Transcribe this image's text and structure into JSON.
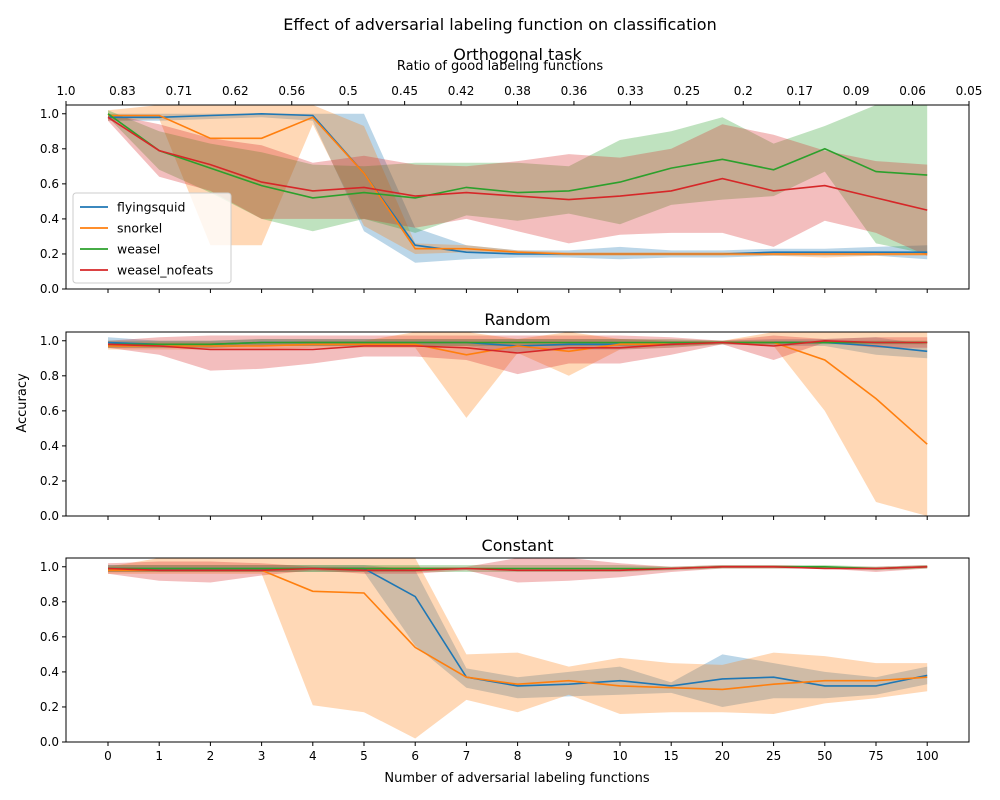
{
  "figure": {
    "suptitle": "Effect of adversarial labeling function on classification",
    "ylabel": "Accuracy",
    "xlabel": "Number of adversarial labeling functions",
    "top_axis_label": "Ratio of good labeling functions",
    "top_tick_labels": [
      "1.0",
      "0.83",
      "0.71",
      "0.62",
      "0.56",
      "0.5",
      "0.45",
      "0.42",
      "0.38",
      "0.36",
      "0.33",
      "0.25",
      "0.2",
      "0.17",
      "0.09",
      "0.06",
      "0.05"
    ]
  },
  "chart_data": [
    {
      "type": "line",
      "title": "Orthogonal task",
      "x": [
        "0",
        "1",
        "2",
        "3",
        "4",
        "5",
        "6",
        "7",
        "8",
        "9",
        "10",
        "15",
        "20",
        "25",
        "50",
        "75",
        "100"
      ],
      "ylim": [
        0,
        1.05
      ],
      "yticks": [
        "0.0",
        "0.2",
        "0.4",
        "0.6",
        "0.8",
        "1.0"
      ],
      "grid": false,
      "legend": "center-left",
      "series": [
        {
          "name": "flyingsquid",
          "color": "#1f77b4",
          "values": [
            0.98,
            0.98,
            0.99,
            1.0,
            0.99,
            0.66,
            0.25,
            0.21,
            0.2,
            0.2,
            0.2,
            0.2,
            0.2,
            0.21,
            0.21,
            0.21,
            0.21
          ],
          "lower": [
            0.96,
            0.96,
            0.97,
            0.98,
            0.96,
            0.33,
            0.15,
            0.17,
            0.18,
            0.18,
            0.17,
            0.18,
            0.18,
            0.19,
            0.19,
            0.19,
            0.17
          ],
          "upper": [
            1.0,
            1.0,
            1.0,
            1.0,
            1.0,
            1.0,
            0.35,
            0.25,
            0.22,
            0.22,
            0.24,
            0.22,
            0.22,
            0.23,
            0.23,
            0.24,
            0.25
          ]
        },
        {
          "name": "snorkel",
          "color": "#ff7f0e",
          "values": [
            0.99,
            0.99,
            0.86,
            0.86,
            0.98,
            0.66,
            0.23,
            0.23,
            0.21,
            0.2,
            0.2,
            0.2,
            0.2,
            0.2,
            0.2,
            0.2,
            0.2
          ],
          "lower": [
            0.96,
            0.97,
            0.25,
            0.25,
            0.94,
            0.36,
            0.2,
            0.21,
            0.2,
            0.19,
            0.19,
            0.19,
            0.19,
            0.19,
            0.18,
            0.19,
            0.19
          ],
          "upper": [
            1.02,
            1.05,
            1.05,
            1.05,
            1.05,
            0.93,
            0.26,
            0.25,
            0.22,
            0.21,
            0.21,
            0.21,
            0.21,
            0.21,
            0.21,
            0.21,
            0.21
          ]
        },
        {
          "name": "weasel",
          "color": "#2ca02c",
          "values": [
            1.0,
            0.79,
            0.69,
            0.59,
            0.52,
            0.55,
            0.52,
            0.58,
            0.55,
            0.56,
            0.61,
            0.69,
            0.74,
            0.68,
            0.8,
            0.67,
            0.65
          ],
          "lower": [
            0.98,
            0.68,
            0.55,
            0.4,
            0.33,
            0.4,
            0.32,
            0.42,
            0.39,
            0.43,
            0.37,
            0.48,
            0.51,
            0.53,
            0.67,
            0.26,
            0.2
          ],
          "upper": [
            1.02,
            0.9,
            0.83,
            0.78,
            0.71,
            0.7,
            0.72,
            0.72,
            0.72,
            0.7,
            0.85,
            0.9,
            0.98,
            0.83,
            0.93,
            1.05,
            1.05
          ]
        },
        {
          "name": "weasel_nofeats",
          "color": "#d62728",
          "values": [
            0.98,
            0.79,
            0.71,
            0.61,
            0.56,
            0.58,
            0.53,
            0.55,
            0.53,
            0.51,
            0.53,
            0.56,
            0.63,
            0.56,
            0.59,
            0.52,
            0.45
          ],
          "lower": [
            0.96,
            0.64,
            0.56,
            0.4,
            0.4,
            0.4,
            0.35,
            0.4,
            0.33,
            0.26,
            0.31,
            0.32,
            0.32,
            0.24,
            0.39,
            0.32,
            0.19
          ],
          "upper": [
            1.0,
            0.94,
            0.86,
            0.82,
            0.72,
            0.76,
            0.71,
            0.7,
            0.73,
            0.77,
            0.75,
            0.8,
            0.94,
            0.88,
            0.79,
            0.73,
            0.71
          ]
        }
      ]
    },
    {
      "type": "line",
      "title": "Random",
      "x": [
        "0",
        "1",
        "2",
        "3",
        "4",
        "5",
        "6",
        "7",
        "8",
        "9",
        "10",
        "15",
        "20",
        "25",
        "50",
        "75",
        "100"
      ],
      "ylim": [
        0,
        1.05
      ],
      "yticks": [
        "0.0",
        "0.2",
        "0.4",
        "0.6",
        "0.8",
        "1.0"
      ],
      "grid": false,
      "series": [
        {
          "name": "flyingsquid",
          "color": "#1f77b4",
          "values": [
            0.99,
            0.98,
            0.98,
            0.99,
            0.99,
            0.99,
            0.99,
            0.99,
            0.97,
            0.98,
            0.98,
            0.98,
            0.99,
            0.99,
            0.99,
            0.97,
            0.94
          ],
          "lower": [
            0.96,
            0.96,
            0.96,
            0.97,
            0.97,
            0.97,
            0.97,
            0.97,
            0.93,
            0.95,
            0.95,
            0.96,
            0.98,
            0.97,
            0.97,
            0.92,
            0.9
          ],
          "upper": [
            1.02,
            1.0,
            1.0,
            1.01,
            1.01,
            1.01,
            1.01,
            1.01,
            1.01,
            1.01,
            1.01,
            1.0,
            1.0,
            1.01,
            1.01,
            1.02,
            0.98
          ]
        },
        {
          "name": "snorkel",
          "color": "#ff7f0e",
          "values": [
            0.97,
            0.97,
            0.97,
            0.97,
            0.98,
            0.98,
            0.98,
            0.92,
            0.97,
            0.94,
            0.98,
            0.98,
            0.99,
            0.99,
            0.89,
            0.67,
            0.41
          ],
          "lower": [
            0.95,
            0.95,
            0.95,
            0.95,
            0.96,
            0.96,
            0.96,
            0.56,
            0.93,
            0.8,
            0.95,
            0.96,
            0.98,
            0.97,
            0.6,
            0.08,
            0.0
          ],
          "upper": [
            0.99,
            0.99,
            0.99,
            0.99,
            1.0,
            1.0,
            1.05,
            1.05,
            1.01,
            1.05,
            1.01,
            1.0,
            1.0,
            1.05,
            1.05,
            1.05,
            1.05
          ]
        },
        {
          "name": "weasel",
          "color": "#2ca02c",
          "values": [
            0.98,
            0.98,
            0.98,
            0.99,
            0.99,
            0.99,
            0.99,
            0.99,
            0.99,
            0.99,
            0.99,
            0.99,
            0.99,
            0.99,
            0.99,
            0.99,
            0.99
          ],
          "lower": [
            0.96,
            0.96,
            0.96,
            0.97,
            0.97,
            0.97,
            0.97,
            0.97,
            0.97,
            0.97,
            0.97,
            0.97,
            0.98,
            0.98,
            0.98,
            0.98,
            0.98
          ],
          "upper": [
            1.0,
            1.0,
            1.0,
            1.01,
            1.01,
            1.01,
            1.01,
            1.01,
            1.01,
            1.01,
            1.01,
            1.01,
            1.0,
            1.0,
            1.0,
            1.0,
            1.0
          ]
        },
        {
          "name": "weasel_nofeats",
          "color": "#d62728",
          "values": [
            0.98,
            0.97,
            0.95,
            0.95,
            0.95,
            0.97,
            0.97,
            0.96,
            0.93,
            0.96,
            0.96,
            0.98,
            0.99,
            0.97,
            1.0,
            0.99,
            0.99
          ],
          "lower": [
            0.96,
            0.92,
            0.83,
            0.84,
            0.87,
            0.91,
            0.91,
            0.89,
            0.81,
            0.87,
            0.87,
            0.92,
            0.98,
            0.89,
            0.99,
            0.96,
            0.96
          ],
          "upper": [
            1.0,
            1.02,
            1.03,
            1.03,
            1.03,
            1.03,
            1.03,
            1.03,
            1.03,
            1.03,
            1.03,
            1.02,
            1.0,
            1.03,
            1.01,
            1.02,
            1.02
          ]
        }
      ]
    },
    {
      "type": "line",
      "title": "Constant",
      "x": [
        "0",
        "1",
        "2",
        "3",
        "4",
        "5",
        "6",
        "7",
        "8",
        "9",
        "10",
        "15",
        "20",
        "25",
        "50",
        "75",
        "100"
      ],
      "ylim": [
        0,
        1.05
      ],
      "yticks": [
        "0.0",
        "0.2",
        "0.4",
        "0.6",
        "0.8",
        "1.0"
      ],
      "grid": false,
      "series": [
        {
          "name": "flyingsquid",
          "color": "#1f77b4",
          "values": [
            0.99,
            0.99,
            0.99,
            0.99,
            0.99,
            0.99,
            0.83,
            0.37,
            0.32,
            0.33,
            0.35,
            0.32,
            0.36,
            0.37,
            0.32,
            0.32,
            0.38
          ],
          "lower": [
            0.97,
            0.97,
            0.97,
            0.97,
            0.97,
            0.97,
            0.55,
            0.31,
            0.25,
            0.26,
            0.27,
            0.28,
            0.2,
            0.25,
            0.25,
            0.27,
            0.33
          ],
          "upper": [
            1.01,
            1.01,
            1.01,
            1.01,
            1.01,
            1.01,
            0.98,
            0.42,
            0.37,
            0.4,
            0.43,
            0.34,
            0.5,
            0.45,
            0.4,
            0.37,
            0.43
          ]
        },
        {
          "name": "snorkel",
          "color": "#ff7f0e",
          "values": [
            0.98,
            0.98,
            0.98,
            0.98,
            0.86,
            0.85,
            0.54,
            0.37,
            0.33,
            0.35,
            0.32,
            0.31,
            0.3,
            0.33,
            0.35,
            0.35,
            0.37
          ],
          "lower": [
            0.96,
            0.96,
            0.96,
            0.96,
            0.21,
            0.17,
            0.02,
            0.24,
            0.17,
            0.27,
            0.16,
            0.17,
            0.17,
            0.16,
            0.22,
            0.25,
            0.29
          ],
          "upper": [
            1.0,
            1.05,
            1.05,
            1.05,
            1.05,
            1.05,
            1.05,
            0.5,
            0.51,
            0.43,
            0.48,
            0.45,
            0.44,
            0.51,
            0.49,
            0.45,
            0.45
          ]
        },
        {
          "name": "weasel",
          "color": "#2ca02c",
          "values": [
            0.99,
            0.99,
            0.99,
            0.99,
            0.99,
            0.99,
            0.99,
            0.99,
            0.99,
            0.99,
            0.99,
            0.99,
            1.0,
            1.0,
            1.0,
            0.99,
            1.0
          ],
          "lower": [
            0.97,
            0.97,
            0.97,
            0.97,
            0.97,
            0.97,
            0.97,
            0.97,
            0.97,
            0.97,
            0.97,
            0.98,
            0.99,
            0.99,
            0.99,
            0.98,
            0.99
          ],
          "upper": [
            1.01,
            1.01,
            1.01,
            1.01,
            1.01,
            1.01,
            1.01,
            1.01,
            1.01,
            1.01,
            1.01,
            1.0,
            1.01,
            1.01,
            1.01,
            1.0,
            1.01
          ]
        },
        {
          "name": "weasel_nofeats",
          "color": "#d62728",
          "values": [
            0.99,
            0.98,
            0.98,
            0.98,
            0.99,
            0.98,
            0.98,
            0.99,
            0.98,
            0.98,
            0.98,
            0.99,
            1.0,
            1.0,
            0.99,
            0.99,
            1.0
          ],
          "lower": [
            0.96,
            0.92,
            0.91,
            0.95,
            0.98,
            0.96,
            0.96,
            0.98,
            0.91,
            0.92,
            0.94,
            0.97,
            0.99,
            0.99,
            0.99,
            0.97,
            0.99
          ],
          "upper": [
            1.02,
            1.03,
            1.03,
            1.02,
            1.0,
            1.0,
            1.0,
            1.0,
            1.05,
            1.05,
            1.02,
            1.0,
            1.01,
            1.01,
            1.0,
            1.0,
            1.01
          ]
        }
      ]
    }
  ]
}
